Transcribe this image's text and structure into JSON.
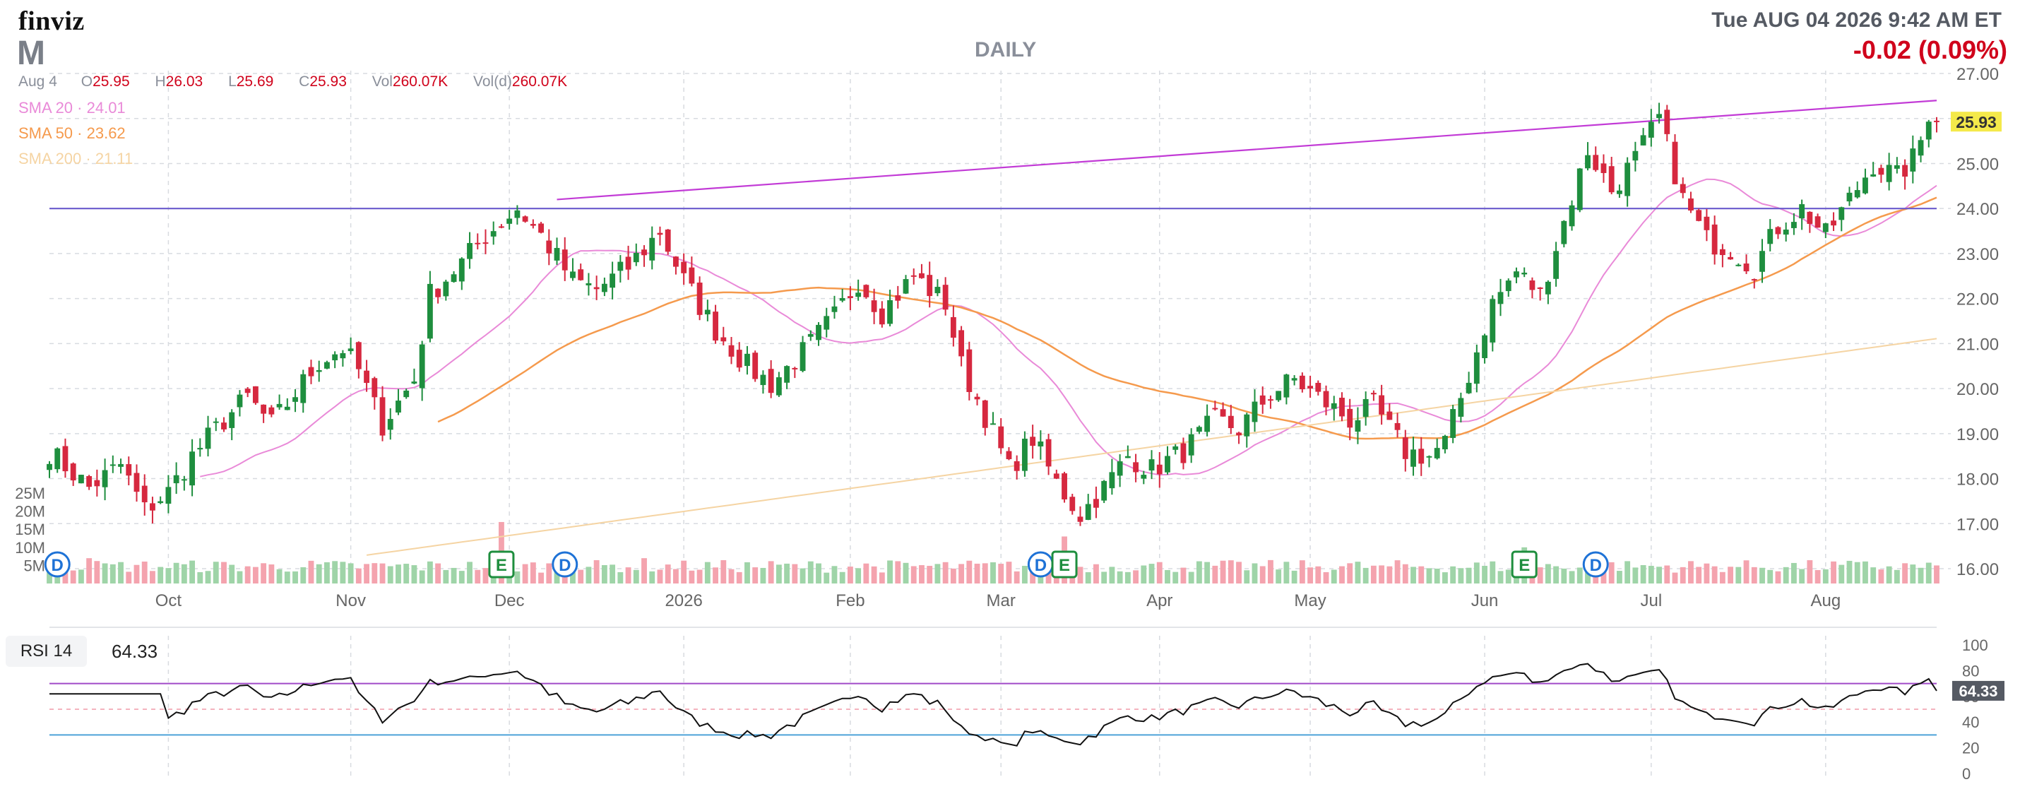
{
  "header": {
    "logo": "finviz",
    "ticker": "M",
    "timeframe": "DAILY",
    "datetime": "Tue AUG 04 2026 9:42 AM ET",
    "change": "-0.02 (0.09%)",
    "ohlc": {
      "date": "Aug 4",
      "open": "25.95",
      "high": "26.03",
      "low": "25.69",
      "close": "25.93",
      "vol": "260.07K",
      "vold": "260.07K"
    }
  },
  "indicators": {
    "sma20": {
      "label": "SMA 20",
      "value": "24.01",
      "color": "#e98ad8"
    },
    "sma50": {
      "label": "SMA 50",
      "value": "23.62",
      "color": "#f59a4d"
    },
    "sma200": {
      "label": "SMA 200",
      "value": "21.11",
      "color": "#f5d4a3"
    }
  },
  "colors": {
    "up": "#1e8e3e",
    "down": "#d6283f",
    "vol_up": "#9fd4a8",
    "vol_down": "#f4a3ae",
    "trend": "#c23bd6",
    "support": "#6a5acd",
    "grid": "#d8dbe0",
    "rsi_line": "#111111",
    "rsi_upper": "#a04ac8",
    "rsi_lower": "#4da3d8"
  },
  "chart_data": {
    "type": "candlestick",
    "price_axis": {
      "min": 16,
      "max": 27,
      "ticks": [
        "16.00",
        "17.00",
        "18.00",
        "19.00",
        "20.00",
        "21.00",
        "22.00",
        "23.00",
        "24.00",
        "25.00",
        "26.00",
        "27.00"
      ]
    },
    "volume_axis": {
      "min": 0,
      "max": 25,
      "unit": "M",
      "ticks": [
        "5M",
        "10M",
        "15M",
        "20M",
        "25M"
      ]
    },
    "x_labels": [
      {
        "label": "Oct",
        "index": 15
      },
      {
        "label": "Nov",
        "index": 38
      },
      {
        "label": "Dec",
        "index": 58
      },
      {
        "label": "2026",
        "index": 80
      },
      {
        "label": "Feb",
        "index": 101
      },
      {
        "label": "Mar",
        "index": 120
      },
      {
        "label": "Apr",
        "index": 140
      },
      {
        "label": "May",
        "index": 159
      },
      {
        "label": "Jun",
        "index": 181
      },
      {
        "label": "Jul",
        "index": 202
      },
      {
        "label": "Aug",
        "index": 224
      }
    ],
    "last_price": "25.93",
    "anchor_points": [
      [
        0,
        18.6
      ],
      [
        5,
        17.8
      ],
      [
        9,
        18.3
      ],
      [
        12,
        17.3
      ],
      [
        15,
        17.7
      ],
      [
        18,
        18.5
      ],
      [
        22,
        19.3
      ],
      [
        25,
        19.8
      ],
      [
        28,
        19.2
      ],
      [
        31,
        19.9
      ],
      [
        34,
        20.6
      ],
      [
        37,
        20.9
      ],
      [
        39,
        20.4
      ],
      [
        42,
        19.2
      ],
      [
        46,
        20.2
      ],
      [
        48,
        22.1
      ],
      [
        52,
        22.8
      ],
      [
        55,
        23.4
      ],
      [
        59,
        24.0
      ],
      [
        62,
        23.4
      ],
      [
        66,
        22.4
      ],
      [
        69,
        22.2
      ],
      [
        73,
        22.7
      ],
      [
        77,
        23.5
      ],
      [
        80,
        22.4
      ],
      [
        84,
        21.3
      ],
      [
        88,
        20.5
      ],
      [
        91,
        20.1
      ],
      [
        95,
        20.8
      ],
      [
        99,
        21.6
      ],
      [
        102,
        22.4
      ],
      [
        105,
        21.7
      ],
      [
        109,
        22.5
      ],
      [
        113,
        21.9
      ],
      [
        115,
        20.5
      ],
      [
        118,
        19.4
      ],
      [
        121,
        18.2
      ],
      [
        124,
        18.9
      ],
      [
        127,
        17.9
      ],
      [
        130,
        17.2
      ],
      [
        133,
        17.8
      ],
      [
        136,
        18.5
      ],
      [
        139,
        18.2
      ],
      [
        143,
        18.6
      ],
      [
        147,
        19.3
      ],
      [
        150,
        19.1
      ],
      [
        154,
        19.9
      ],
      [
        157,
        20.2
      ],
      [
        160,
        19.8
      ],
      [
        164,
        19.3
      ],
      [
        167,
        19.6
      ],
      [
        171,
        18.6
      ],
      [
        174,
        18.5
      ],
      [
        176,
        18.8
      ],
      [
        179,
        20.3
      ],
      [
        182,
        21.9
      ],
      [
        185,
        22.6
      ],
      [
        188,
        22.1
      ],
      [
        191,
        23.7
      ],
      [
        194,
        25.3
      ],
      [
        197,
        24.4
      ],
      [
        200,
        25.1
      ],
      [
        203,
        26.0
      ],
      [
        206,
        24.2
      ],
      [
        209,
        23.3
      ],
      [
        212,
        23.1
      ],
      [
        215,
        22.7
      ],
      [
        218,
        23.6
      ],
      [
        221,
        24.0
      ],
      [
        224,
        23.4
      ],
      [
        227,
        24.2
      ],
      [
        230,
        25.0
      ],
      [
        233,
        24.7
      ],
      [
        235,
        25.1
      ],
      [
        237,
        25.93
      ]
    ],
    "earnings_markers": [
      {
        "label": "E",
        "index": 57
      },
      {
        "label": "E",
        "index": 128
      },
      {
        "label": "E",
        "index": 186
      }
    ],
    "dividend_markers": [
      {
        "label": "D",
        "index": 1
      },
      {
        "label": "D",
        "index": 65
      },
      {
        "label": "D",
        "index": 125
      },
      {
        "label": "D",
        "index": 195
      }
    ],
    "trendlines": [
      {
        "name": "resistance",
        "from": {
          "index": 64,
          "value": 24.2
        },
        "to": {
          "index": 238,
          "value": 26.4
        }
      },
      {
        "name": "support",
        "from": {
          "index": 0,
          "value": 24.0
        },
        "to": {
          "index": 238,
          "value": 24.0
        }
      }
    ],
    "rsi": {
      "label": "RSI 14",
      "value": "64.33",
      "axis": {
        "min": 0,
        "max": 100,
        "ticks": [
          "0",
          "20",
          "40",
          "60",
          "80",
          "100"
        ]
      },
      "upper": 70,
      "lower": 30,
      "mid": 50
    }
  }
}
